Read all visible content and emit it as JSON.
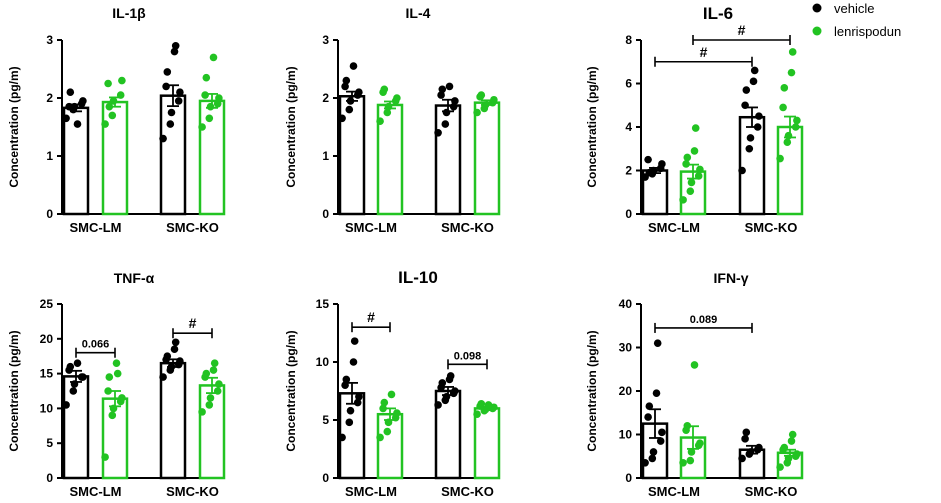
{
  "legend": {
    "position": "top-right",
    "entries": [
      {
        "name": "vehicle",
        "color": "#000000"
      },
      {
        "name": "lenrispodun",
        "color": "#22c322"
      }
    ]
  },
  "chart_data": [
    {
      "type": "bar",
      "title": "IL-1β",
      "ylabel": "Concentration (pg/m)",
      "categories": [
        "SMC-LM",
        "SMC-KO"
      ],
      "ylim": [
        0,
        3
      ],
      "yticks": [
        0,
        1,
        2,
        3
      ],
      "series": [
        {
          "name": "vehicle",
          "values": [
            1.83,
            2.04
          ],
          "sem": [
            0.06,
            0.18
          ],
          "points": [
            [
              1.65,
              1.8,
              1.85,
              1.9,
              1.95,
              1.85,
              2.1,
              1.55
            ],
            [
              1.3,
              1.55,
              1.75,
              1.95,
              2.1,
              2.2,
              2.45,
              2.8,
              2.9
            ]
          ]
        },
        {
          "name": "lenrispodun",
          "values": [
            1.93,
            1.95
          ],
          "sem": [
            0.08,
            0.12
          ],
          "points": [
            [
              1.55,
              1.7,
              1.95,
              2.05,
              2.3,
              2.25,
              1.85
            ],
            [
              1.5,
              1.65,
              1.85,
              1.9,
              2.0,
              2.05,
              2.35,
              2.7
            ]
          ]
        }
      ],
      "annotations": []
    },
    {
      "type": "bar",
      "title": "IL-4",
      "ylabel": "Concentration (pg/m)",
      "categories": [
        "SMC-LM",
        "SMC-KO"
      ],
      "ylim": [
        0,
        3
      ],
      "yticks": [
        0,
        1,
        2,
        3
      ],
      "series": [
        {
          "name": "vehicle",
          "values": [
            2.03,
            1.87
          ],
          "sem": [
            0.08,
            0.1
          ],
          "points": [
            [
              1.65,
              1.8,
              1.95,
              2.05,
              2.1,
              2.2,
              2.3,
              2.55
            ],
            [
              1.4,
              1.55,
              1.75,
              1.85,
              1.95,
              2.05,
              2.15,
              2.2
            ]
          ]
        },
        {
          "name": "lenrispodun",
          "values": [
            1.88,
            1.92
          ],
          "sem": [
            0.06,
            0.04
          ],
          "points": [
            [
              1.6,
              1.75,
              1.85,
              1.95,
              2.0,
              2.1,
              2.15
            ],
            [
              1.75,
              1.82,
              1.88,
              1.92,
              1.97,
              2.02,
              2.05
            ]
          ]
        }
      ],
      "annotations": []
    },
    {
      "type": "bar",
      "title": "IL-6",
      "ylabel": "Concentration (pg/m)",
      "categories": [
        "SMC-LM",
        "SMC-KO"
      ],
      "ylim": [
        0,
        8
      ],
      "yticks": [
        0,
        2,
        4,
        6,
        8
      ],
      "series": [
        {
          "name": "vehicle",
          "values": [
            2.0,
            4.45
          ],
          "sem": [
            0.12,
            0.45
          ],
          "points": [
            [
              1.7,
              1.85,
              2.0,
              2.1,
              2.3,
              2.5,
              1.9
            ],
            [
              2.0,
              3.0,
              3.5,
              4.0,
              4.5,
              5.0,
              5.7,
              6.1,
              6.6
            ]
          ]
        },
        {
          "name": "lenrispodun",
          "values": [
            1.95,
            4.0
          ],
          "sem": [
            0.32,
            0.48
          ],
          "points": [
            [
              0.65,
              1.05,
              1.45,
              1.75,
              2.05,
              2.3,
              2.6,
              2.9,
              3.95
            ],
            [
              2.55,
              3.3,
              3.6,
              4.0,
              4.3,
              4.9,
              5.8,
              6.5,
              7.45
            ]
          ]
        }
      ],
      "annotations": [
        {
          "from": [
            0,
            0
          ],
          "to": [
            1,
            0
          ],
          "label": "#",
          "y": 7.0
        },
        {
          "from": [
            0,
            1
          ],
          "to": [
            1,
            1
          ],
          "label": "#",
          "y": 8.0
        }
      ]
    },
    {
      "type": "bar",
      "title": "TNF-α",
      "ylabel": "Concentration (pg/m)",
      "categories": [
        "SMC-LM",
        "SMC-KO"
      ],
      "ylim": [
        0,
        25
      ],
      "yticks": [
        0,
        5,
        10,
        15,
        20,
        25
      ],
      "series": [
        {
          "name": "vehicle",
          "values": [
            14.6,
            16.5
          ],
          "sem": [
            0.8,
            0.55
          ],
          "points": [
            [
              10.5,
              12.5,
              13.5,
              14.5,
              14.5,
              15.5,
              16.0,
              16.5
            ],
            [
              14.5,
              15.5,
              16.0,
              16.3,
              16.8,
              17.0,
              17.5,
              18.5,
              19.5
            ]
          ]
        },
        {
          "name": "lenrispodun",
          "values": [
            11.4,
            13.3
          ],
          "sem": [
            1.1,
            1.1
          ],
          "points": [
            [
              3.0,
              9.0,
              10.0,
              11.0,
              11.5,
              12.5,
              14.5,
              16.5,
              15.0
            ],
            [
              9.5,
              10.5,
              11.5,
              12.5,
              13.5,
              14.5,
              15.0,
              15.5,
              16.5
            ]
          ]
        }
      ],
      "annotations": [
        {
          "from": [
            0,
            0
          ],
          "to": [
            0,
            1
          ],
          "label": "0.066",
          "y": 18.0
        },
        {
          "from": [
            1,
            0
          ],
          "to": [
            1,
            1
          ],
          "label": "#",
          "y": 20.8
        }
      ]
    },
    {
      "type": "bar",
      "title": "IL-10",
      "ylabel": "Concentration (pg/m)",
      "categories": [
        "SMC-LM",
        "SMC-KO"
      ],
      "ylim": [
        0,
        15
      ],
      "yticks": [
        0,
        5,
        10,
        15
      ],
      "series": [
        {
          "name": "vehicle",
          "values": [
            7.3,
            7.5
          ],
          "sem": [
            0.9,
            0.35
          ],
          "points": [
            [
              3.5,
              4.8,
              5.8,
              6.5,
              7.0,
              8.0,
              8.5,
              10.0,
              11.8
            ],
            [
              6.3,
              6.7,
              7.0,
              7.3,
              7.5,
              7.8,
              8.2,
              8.5,
              8.8
            ]
          ]
        },
        {
          "name": "lenrispodun",
          "values": [
            5.5,
            6.0
          ],
          "sem": [
            0.5,
            0.15
          ],
          "points": [
            [
              3.5,
              4.0,
              4.8,
              5.2,
              5.6,
              6.0,
              6.5,
              7.2
            ],
            [
              5.5,
              5.8,
              5.9,
              6.0,
              6.1,
              6.2,
              6.4,
              6.3
            ]
          ]
        }
      ],
      "annotations": [
        {
          "from": [
            0,
            0
          ],
          "to": [
            0,
            1
          ],
          "label": "#",
          "y": 13.0
        },
        {
          "from": [
            1,
            0
          ],
          "to": [
            1,
            1
          ],
          "label": "0.098",
          "y": 9.8
        }
      ]
    },
    {
      "type": "bar",
      "title": "IFN-γ",
      "ylabel": "Concentration (pg/m)",
      "categories": [
        "SMC-LM",
        "SMC-KO"
      ],
      "ylim": [
        0,
        40
      ],
      "yticks": [
        0,
        10,
        20,
        30,
        40
      ],
      "series": [
        {
          "name": "vehicle",
          "values": [
            12.5,
            6.5
          ],
          "sem": [
            3.3,
            0.9
          ],
          "points": [
            [
              3.5,
              4.5,
              6.0,
              8.5,
              10.5,
              14.0,
              16.5,
              19.5,
              31.0
            ],
            [
              4.5,
              5.5,
              6.0,
              6.5,
              7.0,
              9.0,
              10.5
            ]
          ]
        },
        {
          "name": "lenrispodun",
          "values": [
            9.3,
            5.8
          ],
          "sem": [
            2.6,
            0.7
          ],
          "points": [
            [
              3.5,
              4.0,
              6.0,
              7.5,
              8.0,
              11.0,
              12.0,
              26.0
            ],
            [
              2.5,
              3.5,
              4.5,
              5.0,
              5.5,
              6.5,
              7.0,
              8.5,
              10.0
            ]
          ]
        }
      ],
      "annotations": [
        {
          "from": [
            0,
            0
          ],
          "to": [
            1,
            0
          ],
          "label": "0.089",
          "y": 34.5
        }
      ]
    }
  ]
}
